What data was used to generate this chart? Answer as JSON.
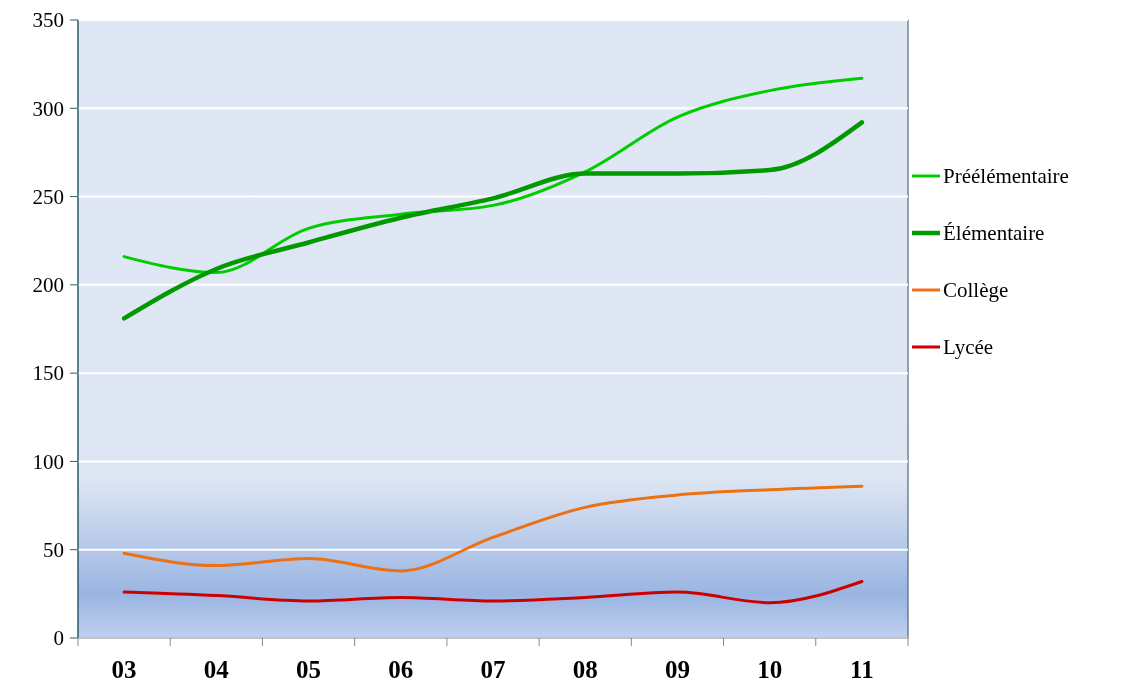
{
  "chart_data": {
    "type": "line",
    "categories": [
      "03",
      "04",
      "05",
      "06",
      "07",
      "08",
      "09",
      "10",
      "11"
    ],
    "series": [
      {
        "name": "Préélémentaire",
        "color": "#00cc00",
        "values": [
          216,
          207,
          232,
          240,
          245,
          264,
          295,
          310,
          317
        ]
      },
      {
        "name": "Élémentaire",
        "color": "#009900",
        "values": [
          181,
          209,
          224,
          238,
          249,
          263,
          263,
          265,
          292
        ]
      },
      {
        "name": "Collège",
        "color": "#ec7014",
        "values": [
          48,
          41,
          45,
          38,
          57,
          74,
          81,
          84,
          86
        ]
      },
      {
        "name": "Lycée",
        "color": "#cc0000",
        "values": [
          26,
          24,
          21,
          23,
          21,
          23,
          26,
          20,
          32
        ]
      }
    ],
    "ylim": [
      0,
      350
    ],
    "yticks": [
      0,
      50,
      100,
      150,
      200,
      250,
      300,
      350
    ],
    "grid": "y",
    "legend": "right",
    "marker": "none",
    "line_style": "solid"
  }
}
